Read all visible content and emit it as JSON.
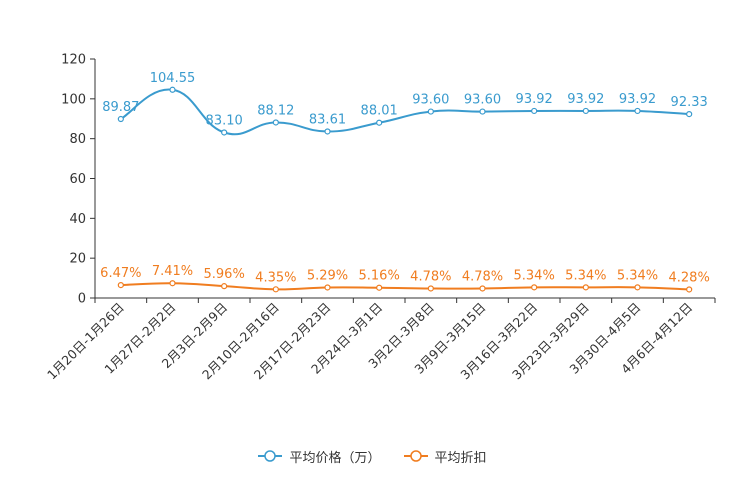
{
  "chart_data": {
    "type": "line",
    "categories": [
      "1月20日-1月26日",
      "1月27日-2月2日",
      "2月3日-2月9日",
      "2月10日-2月16日",
      "2月17日-2月23日",
      "2月24日-3月1日",
      "3月2日-3月8日",
      "3月9日-3月15日",
      "3月16日-3月22日",
      "3月23日-3月29日",
      "3月30日-4月5日",
      "4月6日-4月12日"
    ],
    "series": [
      {
        "name": "平均价格（万）",
        "color": "#3a9bce",
        "values": [
          89.87,
          104.55,
          83.1,
          88.12,
          83.61,
          88.01,
          93.6,
          93.6,
          93.92,
          93.92,
          93.92,
          92.33
        ],
        "labels": [
          "89.87",
          "104.55",
          "83.10",
          "88.12",
          "83.61",
          "88.01",
          "93.60",
          "93.60",
          "93.92",
          "93.92",
          "93.92",
          "92.33"
        ]
      },
      {
        "name": "平均折扣",
        "color": "#f07d20",
        "values": [
          6.47,
          7.41,
          5.96,
          4.35,
          5.29,
          5.16,
          4.78,
          4.78,
          5.34,
          5.34,
          5.34,
          4.28
        ],
        "labels": [
          "6.47%",
          "7.41%",
          "5.96%",
          "4.35%",
          "5.29%",
          "5.16%",
          "4.78%",
          "4.78%",
          "5.34%",
          "5.34%",
          "5.34%",
          "4.28%"
        ]
      }
    ],
    "ylim": [
      0,
      120
    ],
    "yticks": [
      "0",
      "20",
      "40",
      "60",
      "80",
      "100",
      "120"
    ],
    "legend_position": "bottom-center"
  }
}
